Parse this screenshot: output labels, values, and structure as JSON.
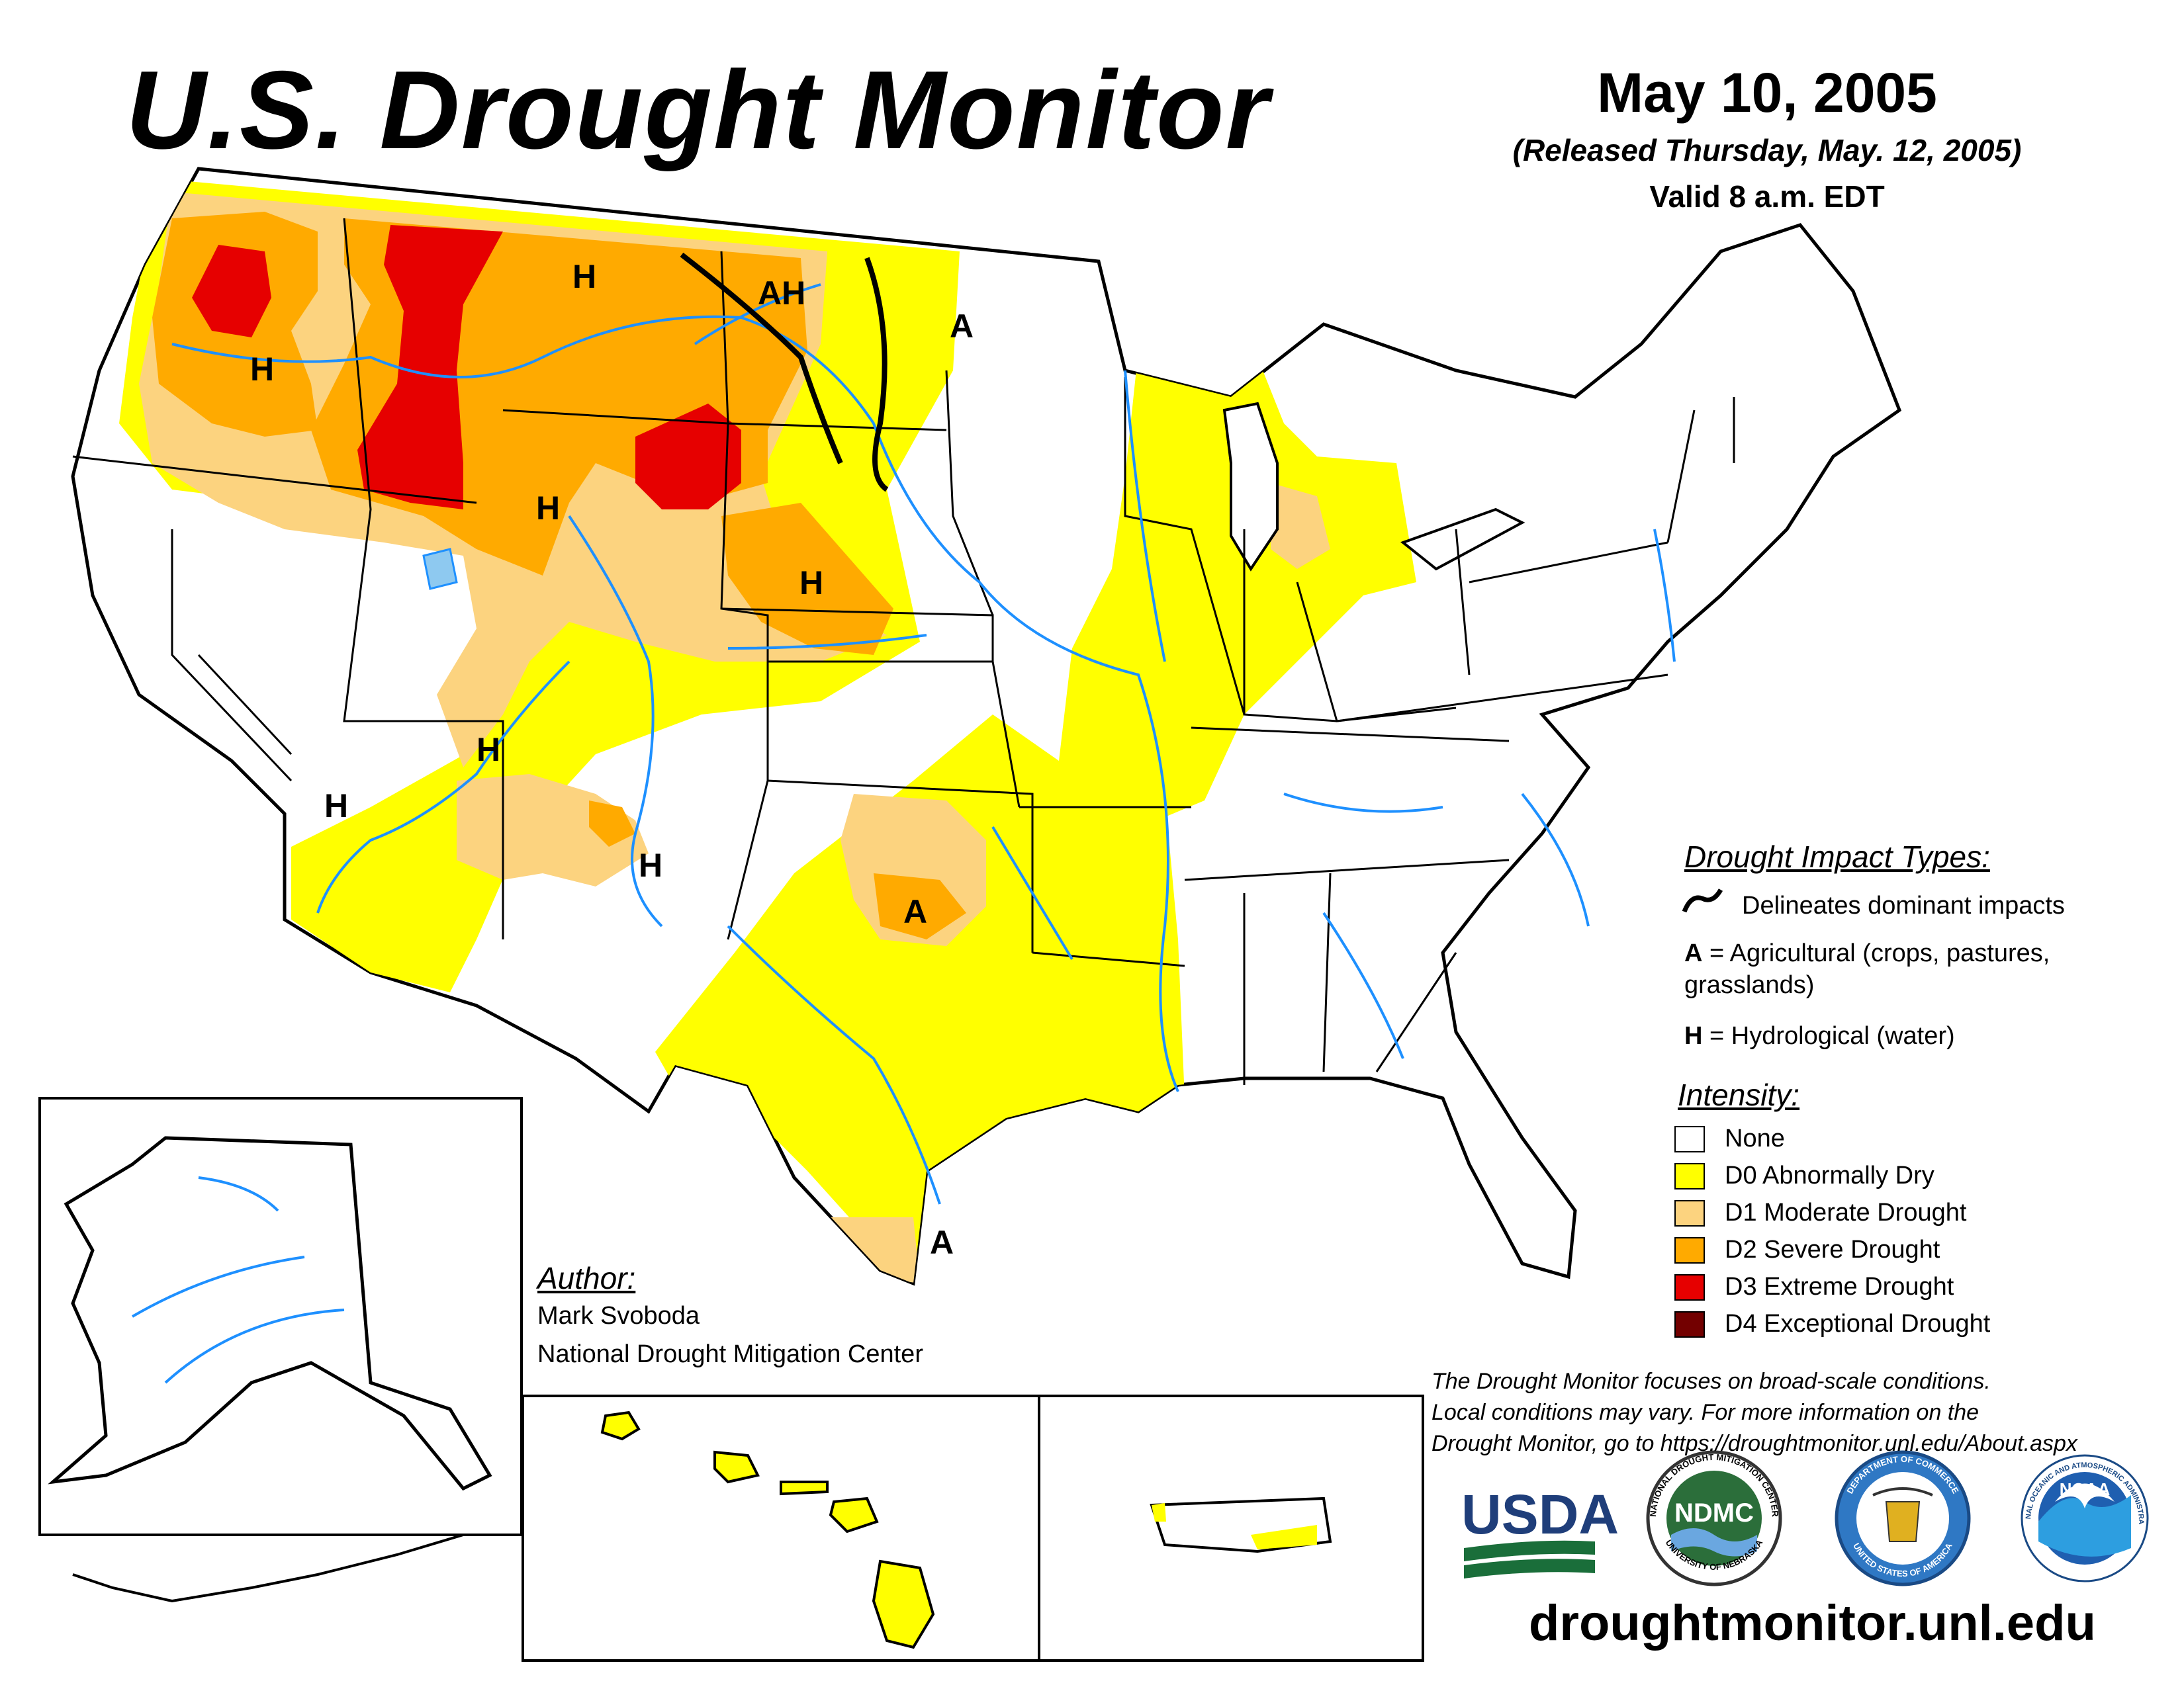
{
  "header": {
    "title": "U.S. Drought Monitor",
    "date": "May 10, 2005",
    "release_note": "(Released Thursday, May. 12, 2005)",
    "valid_note": "Valid 8 a.m. EDT"
  },
  "impact_types": {
    "heading": "Drought Impact Types:",
    "delineates": "Delineates dominant impacts",
    "agricultural_code": "A",
    "agricultural_desc": "= Agricultural (crops, pastures,",
    "agricultural_desc2": "grasslands)",
    "hydrological_code": "H",
    "hydrological_desc": "= Hydrological (water)"
  },
  "intensity": {
    "heading": "Intensity:",
    "levels": [
      {
        "label": "None",
        "color": "#ffffff"
      },
      {
        "label": "D0 Abnormally Dry",
        "color": "#ffff00"
      },
      {
        "label": "D1 Moderate Drought",
        "color": "#fcd37f"
      },
      {
        "label": "D2 Severe Drought",
        "color": "#ffaa00"
      },
      {
        "label": "D3 Extreme Drought",
        "color": "#e60000"
      },
      {
        "label": "D4 Exceptional Drought",
        "color": "#730000"
      }
    ]
  },
  "map_labels": {
    "h": "H",
    "a": "A",
    "ah": "AH"
  },
  "author": {
    "heading": "Author:",
    "name": "Mark Svoboda",
    "org": "National Drought Mitigation Center"
  },
  "disclaimer": {
    "line1": "The Drought Monitor focuses on broad-scale conditions.",
    "line2": "Local conditions may vary. For more information on the",
    "line3": "Drought Monitor, go to https://droughtmonitor.unl.edu/About.aspx"
  },
  "logos": {
    "usda": "USDA",
    "ndmc": "NDMC",
    "ndmc_ring_top": "NATIONAL DROUGHT MITIGATION CENTER",
    "ndmc_ring_bottom": "UNIVERSITY OF NEBRASKA",
    "commerce_ring_top": "DEPARTMENT OF COMMERCE",
    "commerce_ring_bottom": "UNITED STATES OF AMERICA",
    "noaa": "NOAA",
    "noaa_ring": "NATIONAL OCEANIC AND ATMOSPHERIC ADMINISTRATION"
  },
  "website": "droughtmonitor.unl.edu",
  "colors": {
    "d0": "#ffff00",
    "d1": "#fcd37f",
    "d2": "#ffaa00",
    "d3": "#e60000",
    "d4": "#730000",
    "water": "#1e90ff",
    "lake": "#8ec9f0"
  }
}
